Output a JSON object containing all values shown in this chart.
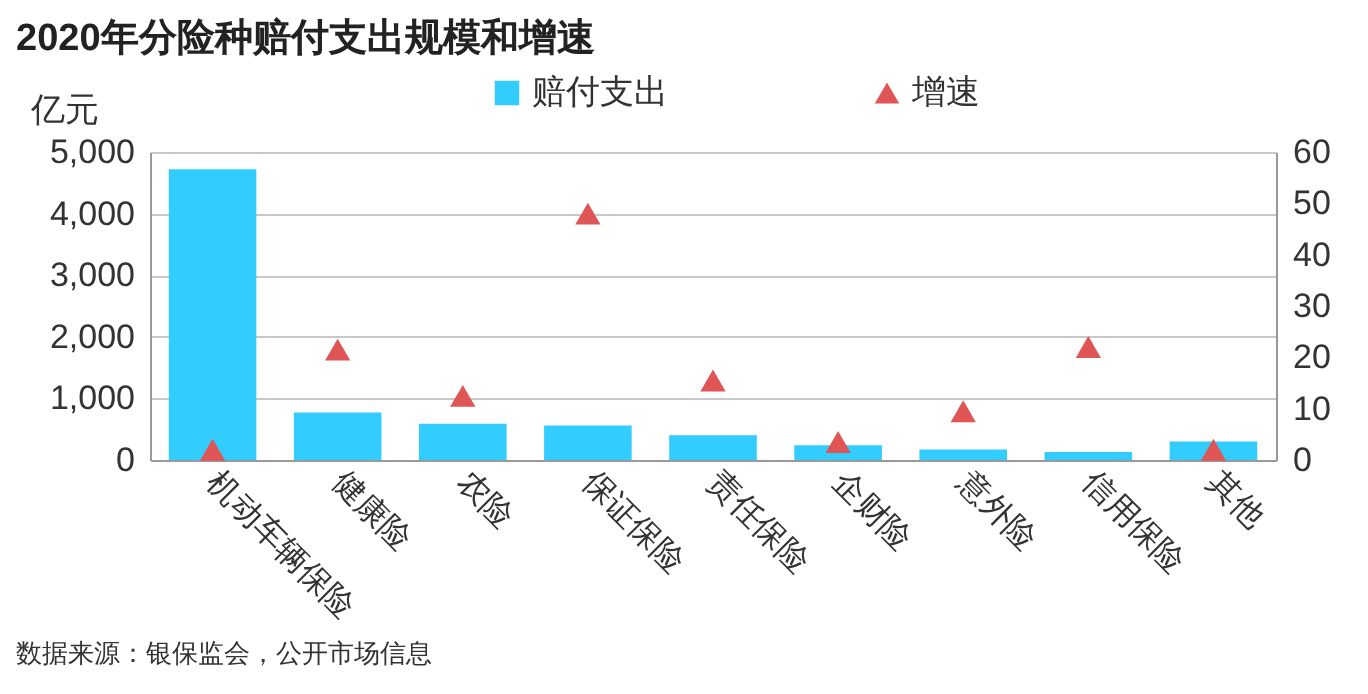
{
  "chart_data": {
    "type": "bar",
    "title": "2020年分险种赔付支出规模和增速",
    "ylabel": "亿元",
    "categories": [
      "机动车辆保险",
      "健康险",
      "农险",
      "保证保险",
      "责任保险",
      "企财险",
      "意外险",
      "信用保险",
      "其他"
    ],
    "series": [
      {
        "name": "赔付支出",
        "color": "#33ccff",
        "values": [
          4720,
          770,
          590,
          560,
          400,
          240,
          170,
          130,
          300
        ]
      },
      {
        "name": "增速",
        "type": "scatter",
        "axis": "y2",
        "marker": "triangle",
        "color": "#e05555",
        "values": [
          2,
          21.5,
          12.5,
          48,
          15.5,
          3.5,
          9.5,
          22,
          2
        ]
      }
    ],
    "ylim": [
      0,
      5000
    ],
    "yticks": [
      0,
      {
        "value": 1000,
        "label": "1,000"
      },
      {
        "value": 2000,
        "label": "2,000"
      },
      {
        "value": 3000,
        "label": "3,000"
      },
      {
        "value": 4000,
        "label": "4,000"
      },
      {
        "value": 5000,
        "label": "5,000"
      }
    ],
    "y2lim": [
      0,
      60
    ],
    "y2ticks": [
      0,
      10,
      20,
      30,
      40,
      50,
      60
    ],
    "grid": "y",
    "legend": "top",
    "annotations": [
      "数据来源：银保监会，公开市场信息"
    ]
  }
}
